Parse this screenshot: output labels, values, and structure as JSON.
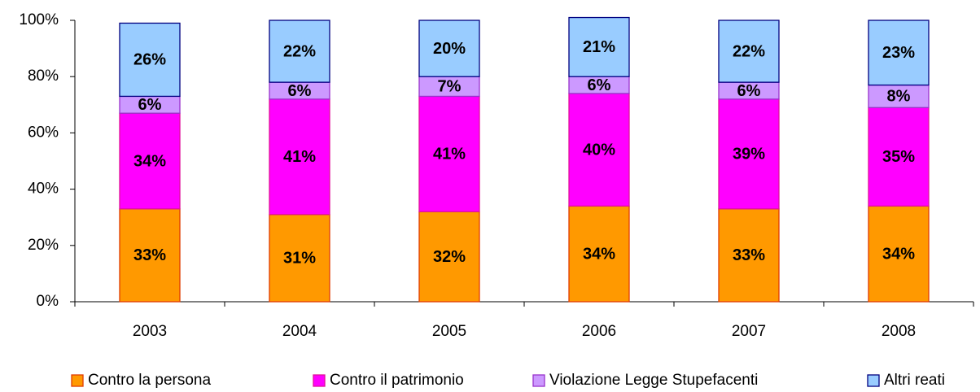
{
  "chart_data": {
    "type": "stacked_bar",
    "categories": [
      "2003",
      "2004",
      "2005",
      "2006",
      "2007",
      "2008"
    ],
    "series": [
      {
        "name": "Contro la persona",
        "color": "#ff9900",
        "edgecolor": "#e03c00",
        "values": [
          33,
          31,
          32,
          34,
          33,
          34
        ],
        "value_labels": [
          "33%",
          "31%",
          "32%",
          "34%",
          "33%",
          "34%"
        ]
      },
      {
        "name": "Contro il patrimonio",
        "color": "#ff00ff",
        "edgecolor": "#e0109a",
        "values": [
          34,
          41,
          41,
          40,
          39,
          35
        ],
        "value_labels": [
          "34%",
          "41%",
          "41%",
          "40%",
          "39%",
          "35%"
        ]
      },
      {
        "name": "Violazione Legge Stupefacenti",
        "color": "#cc99ff",
        "edgecolor": "#9933cc",
        "values": [
          6,
          6,
          7,
          6,
          6,
          8
        ],
        "value_labels": [
          "6%",
          "6%",
          "7%",
          "6%",
          "6%",
          "8%"
        ]
      },
      {
        "name": "Altri reati",
        "color": "#99ccff",
        "edgecolor": "#000080",
        "values": [
          26,
          22,
          20,
          21,
          22,
          23
        ],
        "value_labels": [
          "26%",
          "22%",
          "20%",
          "21%",
          "22%",
          "23%"
        ]
      }
    ],
    "ylim": [
      0,
      100
    ],
    "yticks": [
      {
        "value": 0,
        "label": "0%"
      },
      {
        "value": 20,
        "label": "20%"
      },
      {
        "value": 40,
        "label": "40%"
      },
      {
        "value": 60,
        "label": "60%"
      },
      {
        "value": 80,
        "label": "80%"
      },
      {
        "value": 100,
        "label": "100%"
      }
    ],
    "legend": "bottom"
  }
}
